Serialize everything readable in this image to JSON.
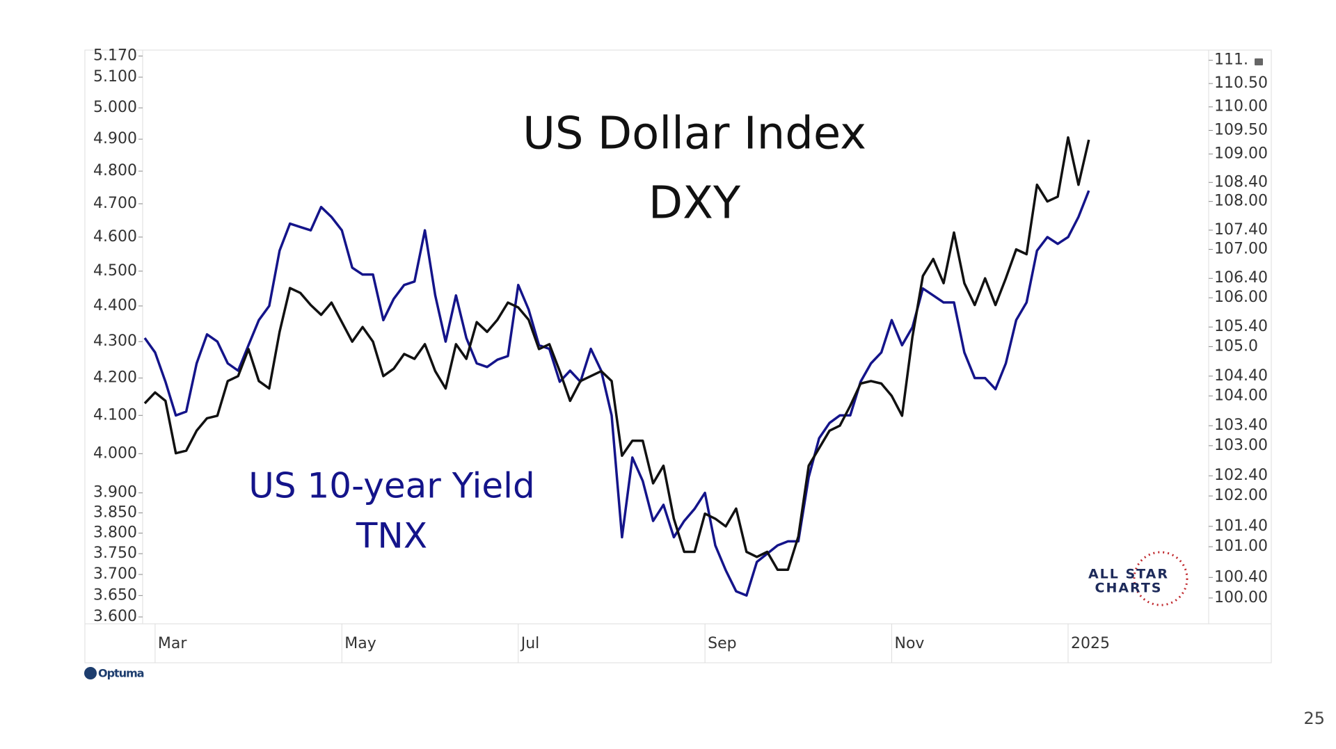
{
  "chart_data": {
    "type": "line",
    "annotations": [
      "US Dollar Index",
      "DXY",
      "US 10-year Yield",
      "TNX"
    ],
    "watermark": [
      "ALL STAR",
      "CHARTS"
    ],
    "source": "Optuma",
    "page_number": "25",
    "categories": [
      null,
      "Mar",
      null,
      null,
      null,
      null,
      null,
      null,
      null,
      null,
      null,
      null,
      null,
      null,
      null,
      null,
      null,
      null,
      null,
      "May",
      null,
      null,
      null,
      null,
      null,
      null,
      null,
      null,
      null,
      null,
      null,
      null,
      null,
      null,
      null,
      null,
      "Jul",
      null,
      null,
      null,
      null,
      null,
      null,
      null,
      null,
      null,
      null,
      null,
      null,
      null,
      null,
      null,
      null,
      null,
      "Sep",
      null,
      null,
      null,
      null,
      null,
      null,
      null,
      null,
      null,
      null,
      null,
      null,
      null,
      null,
      null,
      null,
      null,
      "Nov",
      null,
      null,
      null,
      null,
      null,
      null,
      null,
      null,
      null,
      null,
      null,
      null,
      null,
      null,
      null,
      null,
      "2025",
      null,
      null
    ],
    "series": [
      {
        "color": "#14148a",
        "axis": "y",
        "values": [
          4.31,
          4.27,
          4.19,
          4.1,
          4.11,
          4.24,
          4.32,
          4.3,
          4.24,
          4.22,
          4.29,
          4.36,
          4.4,
          4.56,
          4.64,
          4.63,
          4.62,
          4.69,
          4.66,
          4.62,
          4.51,
          4.49,
          4.49,
          4.36,
          4.42,
          4.46,
          4.47,
          4.62,
          4.43,
          4.3,
          4.43,
          4.31,
          4.24,
          4.23,
          4.25,
          4.26,
          4.46,
          4.39,
          4.29,
          4.28,
          4.19,
          4.22,
          4.19,
          4.28,
          4.22,
          4.1,
          3.79,
          3.99,
          3.93,
          3.83,
          3.87,
          3.79,
          3.83,
          3.86,
          3.9,
          3.77,
          3.71,
          3.66,
          3.65,
          3.73,
          3.75,
          3.77,
          3.78,
          3.78,
          3.94,
          4.04,
          4.08,
          4.1,
          4.1,
          4.19,
          4.24,
          4.27,
          4.36,
          4.29,
          4.34,
          4.45,
          4.43,
          4.41,
          4.41,
          4.27,
          4.2,
          4.2,
          4.17,
          4.24,
          4.36,
          4.41,
          4.56,
          4.6,
          4.58,
          4.6,
          4.66,
          4.74
        ]
      },
      {
        "color": "#111111",
        "axis": "y2",
        "values": [
          103.85,
          104.07,
          103.9,
          102.85,
          102.9,
          103.3,
          103.55,
          103.6,
          104.3,
          104.4,
          104.95,
          104.3,
          104.15,
          105.3,
          106.2,
          106.1,
          105.85,
          105.65,
          105.9,
          105.5,
          105.1,
          105.4,
          105.1,
          104.4,
          104.55,
          104.85,
          104.75,
          105.05,
          104.5,
          104.15,
          105.05,
          104.75,
          105.5,
          105.3,
          105.55,
          105.9,
          105.8,
          105.55,
          104.95,
          105.05,
          104.5,
          103.9,
          104.3,
          104.4,
          104.5,
          104.3,
          102.8,
          103.1,
          103.1,
          102.25,
          102.6,
          101.55,
          100.9,
          100.9,
          101.65,
          101.55,
          101.4,
          101.75,
          100.9,
          100.8,
          100.9,
          100.55,
          100.55,
          101.2,
          102.6,
          102.95,
          103.3,
          103.4,
          103.8,
          104.25,
          104.3,
          104.25,
          104.0,
          103.6,
          105.2,
          106.45,
          106.8,
          106.3,
          107.35,
          106.3,
          105.85,
          106.4,
          105.85,
          106.4,
          107.0,
          106.9,
          108.35,
          108.0,
          108.1,
          109.35,
          108.35,
          109.3
        ]
      }
    ],
    "log_scale": true,
    "y2_log_scale": true,
    "ylim": [
      3.584,
      5.19
    ],
    "yticks": [
      {
        "value": 5.17,
        "label": "5.170"
      },
      {
        "value": 5.1,
        "label": "5.100"
      },
      {
        "value": 5,
        "label": "5.000"
      },
      {
        "value": 4.9,
        "label": "4.900"
      },
      {
        "value": 4.8,
        "label": "4.800"
      },
      {
        "value": 4.7,
        "label": "4.700"
      },
      {
        "value": 4.6,
        "label": "4.600"
      },
      {
        "value": 4.5,
        "label": "4.500"
      },
      {
        "value": 4.4,
        "label": "4.400"
      },
      {
        "value": 4.3,
        "label": "4.300"
      },
      {
        "value": 4.2,
        "label": "4.200"
      },
      {
        "value": 4.1,
        "label": "4.100"
      },
      {
        "value": 4,
        "label": "4.000"
      },
      {
        "value": 3.9,
        "label": "3.900"
      },
      {
        "value": 3.85,
        "label": "3.850"
      },
      {
        "value": 3.8,
        "label": "3.800"
      },
      {
        "value": 3.75,
        "label": "3.750"
      },
      {
        "value": 3.7,
        "label": "3.700"
      },
      {
        "value": 3.65,
        "label": "3.650"
      },
      {
        "value": 3.6,
        "label": "3.600"
      }
    ],
    "y2lim": [
      99.5,
      111.22
    ],
    "y2ticks": [
      {
        "value": 111,
        "label": "111."
      },
      {
        "value": 110.5,
        "label": "110.50"
      },
      {
        "value": 110,
        "label": "110.00"
      },
      {
        "value": 109.5,
        "label": "109.50"
      },
      {
        "value": 109,
        "label": "109.00"
      },
      {
        "value": 108.4,
        "label": "108.40"
      },
      {
        "value": 108,
        "label": "108.00"
      },
      {
        "value": 107.4,
        "label": "107.40"
      },
      {
        "value": 107,
        "label": "107.00"
      },
      {
        "value": 106.4,
        "label": "106.40"
      },
      {
        "value": 106,
        "label": "106.00"
      },
      {
        "value": 105.4,
        "label": "105.40"
      },
      {
        "value": 105,
        "label": "105.0"
      },
      {
        "value": 104.4,
        "label": "104.40"
      },
      {
        "value": 104,
        "label": "104.00"
      },
      {
        "value": 103.4,
        "label": "103.40"
      },
      {
        "value": 103,
        "label": "103.00"
      },
      {
        "value": 102.4,
        "label": "102.40"
      },
      {
        "value": 102,
        "label": "102.00"
      },
      {
        "value": 101.4,
        "label": "101.40"
      },
      {
        "value": 101,
        "label": "101.00"
      },
      {
        "value": 100.4,
        "label": "100.40"
      },
      {
        "value": 100,
        "label": "100.00"
      }
    ],
    "grid": false
  }
}
